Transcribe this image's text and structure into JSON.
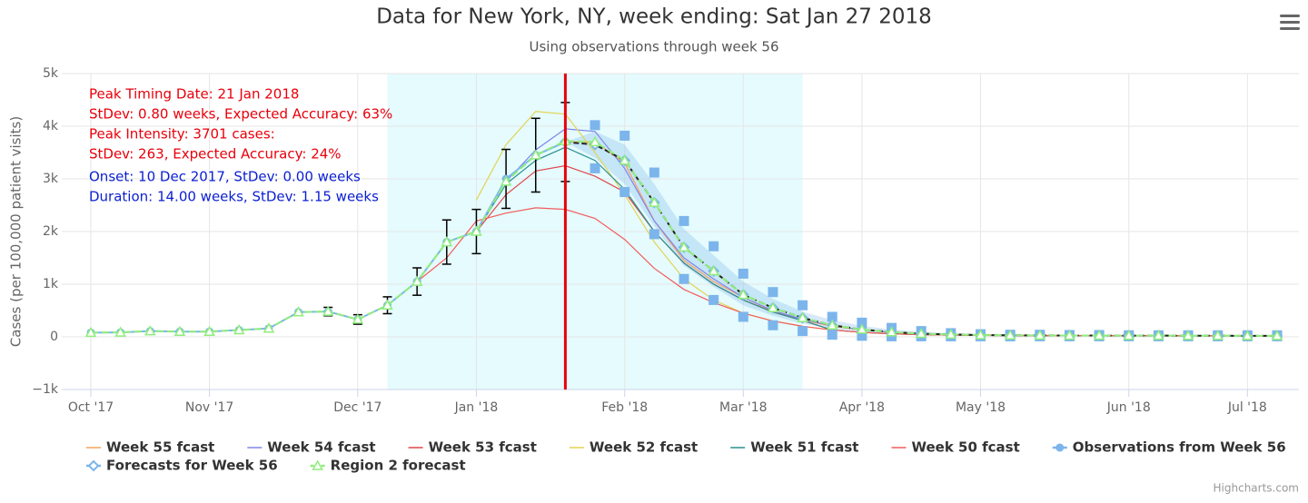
{
  "chart_data": {
    "type": "line",
    "title": "Data for New York, NY, week ending: Sat Jan 27 2018",
    "subtitle": "Using observations through week 56",
    "y_label": "Cases (per 100,000 patient visits)",
    "credits": "Highcharts.com",
    "annotations": [
      {
        "text": "Peak Timing Date: 21 Jan 2018",
        "color": "#e8000b"
      },
      {
        "text": "StDev: 0.80 weeks, Expected Accuracy: 63%",
        "color": "#e8000b"
      },
      {
        "text": "Peak Intensity: 3701 cases:",
        "color": "#e8000b"
      },
      {
        "text": "StDev: 263, Expected Accuracy: 24%",
        "color": "#e8000b"
      },
      {
        "text": "Onset: 10 Dec 2017, StDev: 0.00 weeks",
        "color": "#0a1ed2"
      },
      {
        "text": "Duration: 14.00 weeks, StDev: 1.15 weeks",
        "color": "#0a1ed2"
      }
    ],
    "categories": [
      "Oct '17",
      null,
      null,
      null,
      "Nov '17",
      null,
      null,
      null,
      null,
      "Dec '17",
      null,
      null,
      null,
      "Jan '18",
      null,
      null,
      null,
      null,
      "Feb '18",
      null,
      null,
      null,
      "Mar '18",
      null,
      null,
      null,
      "Apr '18",
      null,
      null,
      null,
      "May '18",
      null,
      null,
      null,
      null,
      "Jun '18",
      null,
      null,
      null,
      "Jul '18",
      null
    ],
    "ylim": [
      -1000,
      5000
    ],
    "yticks": [
      {
        "value": -1000,
        "label": "−1k"
      },
      0,
      {
        "value": 1000,
        "label": "1k"
      },
      {
        "value": 2000,
        "label": "2k"
      },
      {
        "value": 3000,
        "label": "3k"
      },
      {
        "value": 4000,
        "label": "4k"
      },
      {
        "value": 5000,
        "label": "5k"
      }
    ],
    "grid": true,
    "plot_bands": [
      {
        "from": 10,
        "to": 24,
        "color": "#e5fbfd"
      }
    ],
    "plot_lines": [
      {
        "value": 16,
        "color": "#e8000b"
      }
    ],
    "ranges": [
      {
        "color": "#7cb5ec",
        "low": [
          null,
          null,
          null,
          null,
          null,
          null,
          null,
          null,
          null,
          null,
          null,
          null,
          null,
          null,
          null,
          null,
          3700,
          3400,
          2900,
          2100,
          1350,
          950,
          600,
          400,
          250,
          150,
          90,
          60,
          40,
          30,
          25,
          20,
          20,
          18,
          18,
          16,
          16,
          15,
          15,
          15,
          15
        ],
        "high": [
          null,
          null,
          null,
          null,
          null,
          null,
          null,
          null,
          null,
          null,
          null,
          null,
          null,
          null,
          null,
          null,
          3700,
          3900,
          3650,
          2900,
          2050,
          1550,
          1050,
          720,
          480,
          320,
          210,
          140,
          95,
          70,
          55,
          45,
          40,
          38,
          36,
          35,
          34,
          33,
          32,
          31,
          30
        ]
      }
    ],
    "series": [
      {
        "color": "#f7a35c",
        "name": "Week 55 fcast",
        "values": [
          null,
          null,
          null,
          null,
          null,
          null,
          null,
          null,
          null,
          null,
          null,
          null,
          null,
          null,
          null,
          3450,
          3700,
          3700,
          3300,
          2200,
          1450,
          1050,
          750,
          480,
          320,
          200,
          130,
          85,
          58,
          42,
          33,
          28,
          26,
          24,
          23,
          22,
          21,
          20,
          19,
          18,
          18
        ]
      },
      {
        "color": "#8085e9",
        "name": "Week 54 fcast",
        "values": [
          null,
          null,
          null,
          null,
          null,
          null,
          null,
          null,
          null,
          null,
          null,
          null,
          null,
          null,
          2950,
          3550,
          3950,
          3900,
          3200,
          2200,
          1500,
          1100,
          750,
          500,
          330,
          210,
          135,
          88,
          60,
          44,
          34,
          29,
          26,
          24,
          23,
          22,
          21,
          20,
          19,
          18,
          18
        ]
      },
      {
        "color": "#e0474c",
        "name": "Week 53 fcast",
        "values": [
          null,
          null,
          null,
          null,
          null,
          null,
          null,
          null,
          null,
          null,
          null,
          null,
          null,
          2000,
          2700,
          3150,
          3250,
          3050,
          2750,
          2000,
          1400,
          1000,
          700,
          470,
          310,
          130,
          85,
          58,
          42,
          33,
          28,
          26,
          24,
          23,
          22,
          21,
          20,
          19,
          18,
          18,
          18
        ]
      },
      {
        "color": "#e4d354",
        "name": "Week 52 fcast",
        "values": [
          null,
          null,
          null,
          null,
          null,
          null,
          null,
          null,
          null,
          null,
          null,
          null,
          null,
          2600,
          3650,
          4280,
          4230,
          3500,
          2700,
          1800,
          1100,
          700,
          450,
          300,
          200,
          130,
          85,
          58,
          42,
          33,
          28,
          26,
          24,
          23,
          22,
          21,
          20,
          19,
          18,
          18,
          18
        ]
      },
      {
        "color": "#2b908f",
        "name": "Week 51 fcast",
        "values": [
          null,
          null,
          null,
          null,
          null,
          null,
          null,
          null,
          null,
          null,
          null,
          null,
          1800,
          2000,
          2900,
          3350,
          3600,
          3350,
          2800,
          2000,
          1400,
          1000,
          700,
          470,
          310,
          130,
          85,
          58,
          42,
          33,
          28,
          26,
          24,
          23,
          22,
          21,
          20,
          19,
          18,
          18,
          18
        ]
      },
      {
        "color": "#f45b5b",
        "name": "Week 50 fcast",
        "values": [
          null,
          null,
          null,
          null,
          null,
          null,
          null,
          null,
          null,
          null,
          null,
          1050,
          1500,
          2200,
          2350,
          2450,
          2420,
          2250,
          1850,
          1300,
          900,
          650,
          450,
          300,
          200,
          130,
          85,
          58,
          42,
          33,
          28,
          26,
          24,
          23,
          22,
          21,
          20,
          19,
          18,
          18,
          18
        ]
      },
      {
        "color": "#7cb5ec",
        "marker": "square",
        "line": false,
        "values": [
          null,
          null,
          null,
          null,
          null,
          null,
          null,
          null,
          null,
          null,
          null,
          null,
          null,
          null,
          null,
          null,
          null,
          4020,
          3820,
          3120,
          2200,
          1720,
          1200,
          850,
          600,
          380,
          270,
          170,
          110,
          70,
          50,
          40,
          40,
          35,
          35,
          30,
          30,
          30,
          30,
          30,
          30
        ]
      },
      {
        "color": "#7cb5ec",
        "marker": "square",
        "line": false,
        "values": [
          null,
          null,
          null,
          null,
          null,
          null,
          null,
          null,
          null,
          null,
          null,
          null,
          null,
          null,
          null,
          null,
          null,
          3200,
          2750,
          1950,
          1100,
          700,
          380,
          220,
          110,
          40,
          20,
          10,
          10,
          10,
          10,
          10,
          10,
          10,
          10,
          10,
          10,
          10,
          10,
          10,
          10
        ]
      },
      {
        "color": "#7cb5ec",
        "name": "Observations from Week 56",
        "marker": "circle",
        "values": [
          80,
          85,
          110,
          100,
          100,
          130,
          160,
          470,
          480,
          330,
          600,
          1050,
          1800,
          2000,
          3000,
          3450,
          3700,
          null,
          null,
          null,
          null,
          null,
          null,
          null,
          null,
          null,
          null,
          null,
          null,
          null,
          null,
          null,
          null,
          null,
          null,
          null,
          null,
          null,
          null,
          null,
          null
        ],
        "errors": [
          null,
          null,
          null,
          null,
          null,
          null,
          null,
          null,
          80,
          90,
          160,
          260,
          420,
          420,
          560,
          700,
          750,
          null,
          null,
          null,
          null,
          null,
          null,
          null,
          null,
          null,
          null,
          null,
          null,
          null,
          null,
          null,
          null,
          null,
          null,
          null,
          null,
          null,
          null,
          null,
          null
        ]
      },
      {
        "color": "#7cb5ec",
        "line_color": "#222222",
        "dash": "6,3",
        "name": "Forecasts for Week 56",
        "marker": "diamond",
        "values": [
          null,
          null,
          null,
          null,
          null,
          null,
          null,
          null,
          null,
          null,
          null,
          null,
          null,
          null,
          null,
          null,
          3700,
          3650,
          3350,
          2550,
          1700,
          1250,
          800,
          550,
          360,
          220,
          140,
          90,
          60,
          45,
          35,
          30,
          28,
          26,
          25,
          24,
          23,
          22,
          21,
          20,
          20
        ]
      },
      {
        "color": "#90ed7d",
        "dash": "8,4",
        "name": "Region 2 forecast",
        "marker": "triangle",
        "values": [
          80,
          85,
          110,
          100,
          100,
          130,
          160,
          470,
          480,
          330,
          600,
          1050,
          1800,
          2000,
          2950,
          3450,
          3720,
          3700,
          3350,
          2550,
          1700,
          1250,
          800,
          550,
          360,
          220,
          140,
          90,
          60,
          45,
          35,
          30,
          28,
          26,
          25,
          24,
          23,
          22,
          21,
          20,
          20
        ]
      }
    ]
  }
}
